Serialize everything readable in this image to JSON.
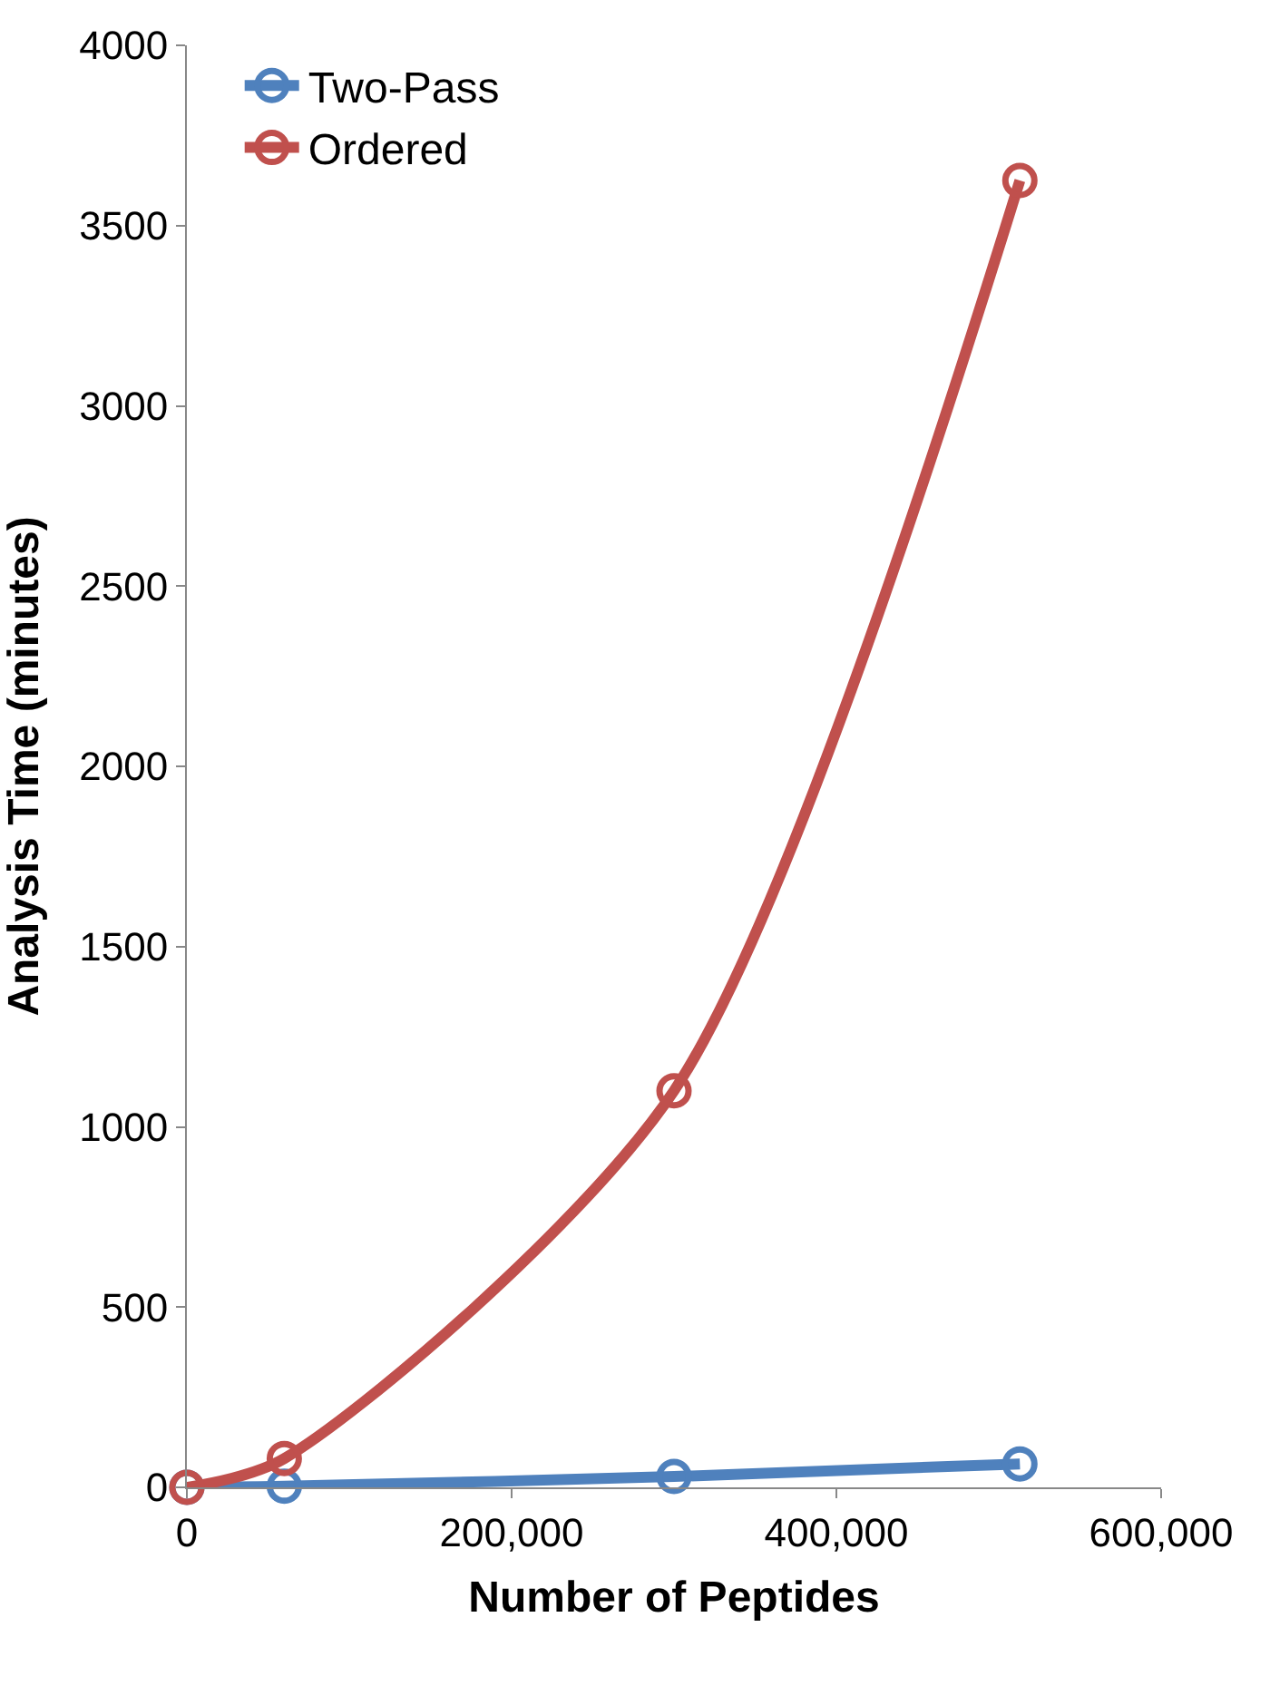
{
  "chart_data": {
    "type": "line",
    "xlabel": "Number of Peptides",
    "ylabel": "Analysis Time (minutes)",
    "xlim": [
      0,
      600000
    ],
    "xticks": [
      0,
      {
        "value": 200000,
        "label": "200,000"
      },
      {
        "value": 400000,
        "label": "400,000"
      },
      {
        "value": 600000,
        "label": "600,000"
      }
    ],
    "ylim": [
      0,
      4000
    ],
    "yticks": [
      0,
      500,
      1000,
      1500,
      2000,
      2500,
      3000,
      3500,
      4000
    ],
    "x": [
      0,
      60000,
      300000,
      513000
    ],
    "series": [
      {
        "name": "Two-Pass",
        "color": "#4f81bd",
        "values": [
          0,
          3,
          30,
          65
        ]
      },
      {
        "name": "Ordered",
        "color": "#c0504d",
        "values": [
          0,
          80,
          1100,
          3625
        ]
      }
    ],
    "marker": "circle",
    "legend": "top left"
  }
}
